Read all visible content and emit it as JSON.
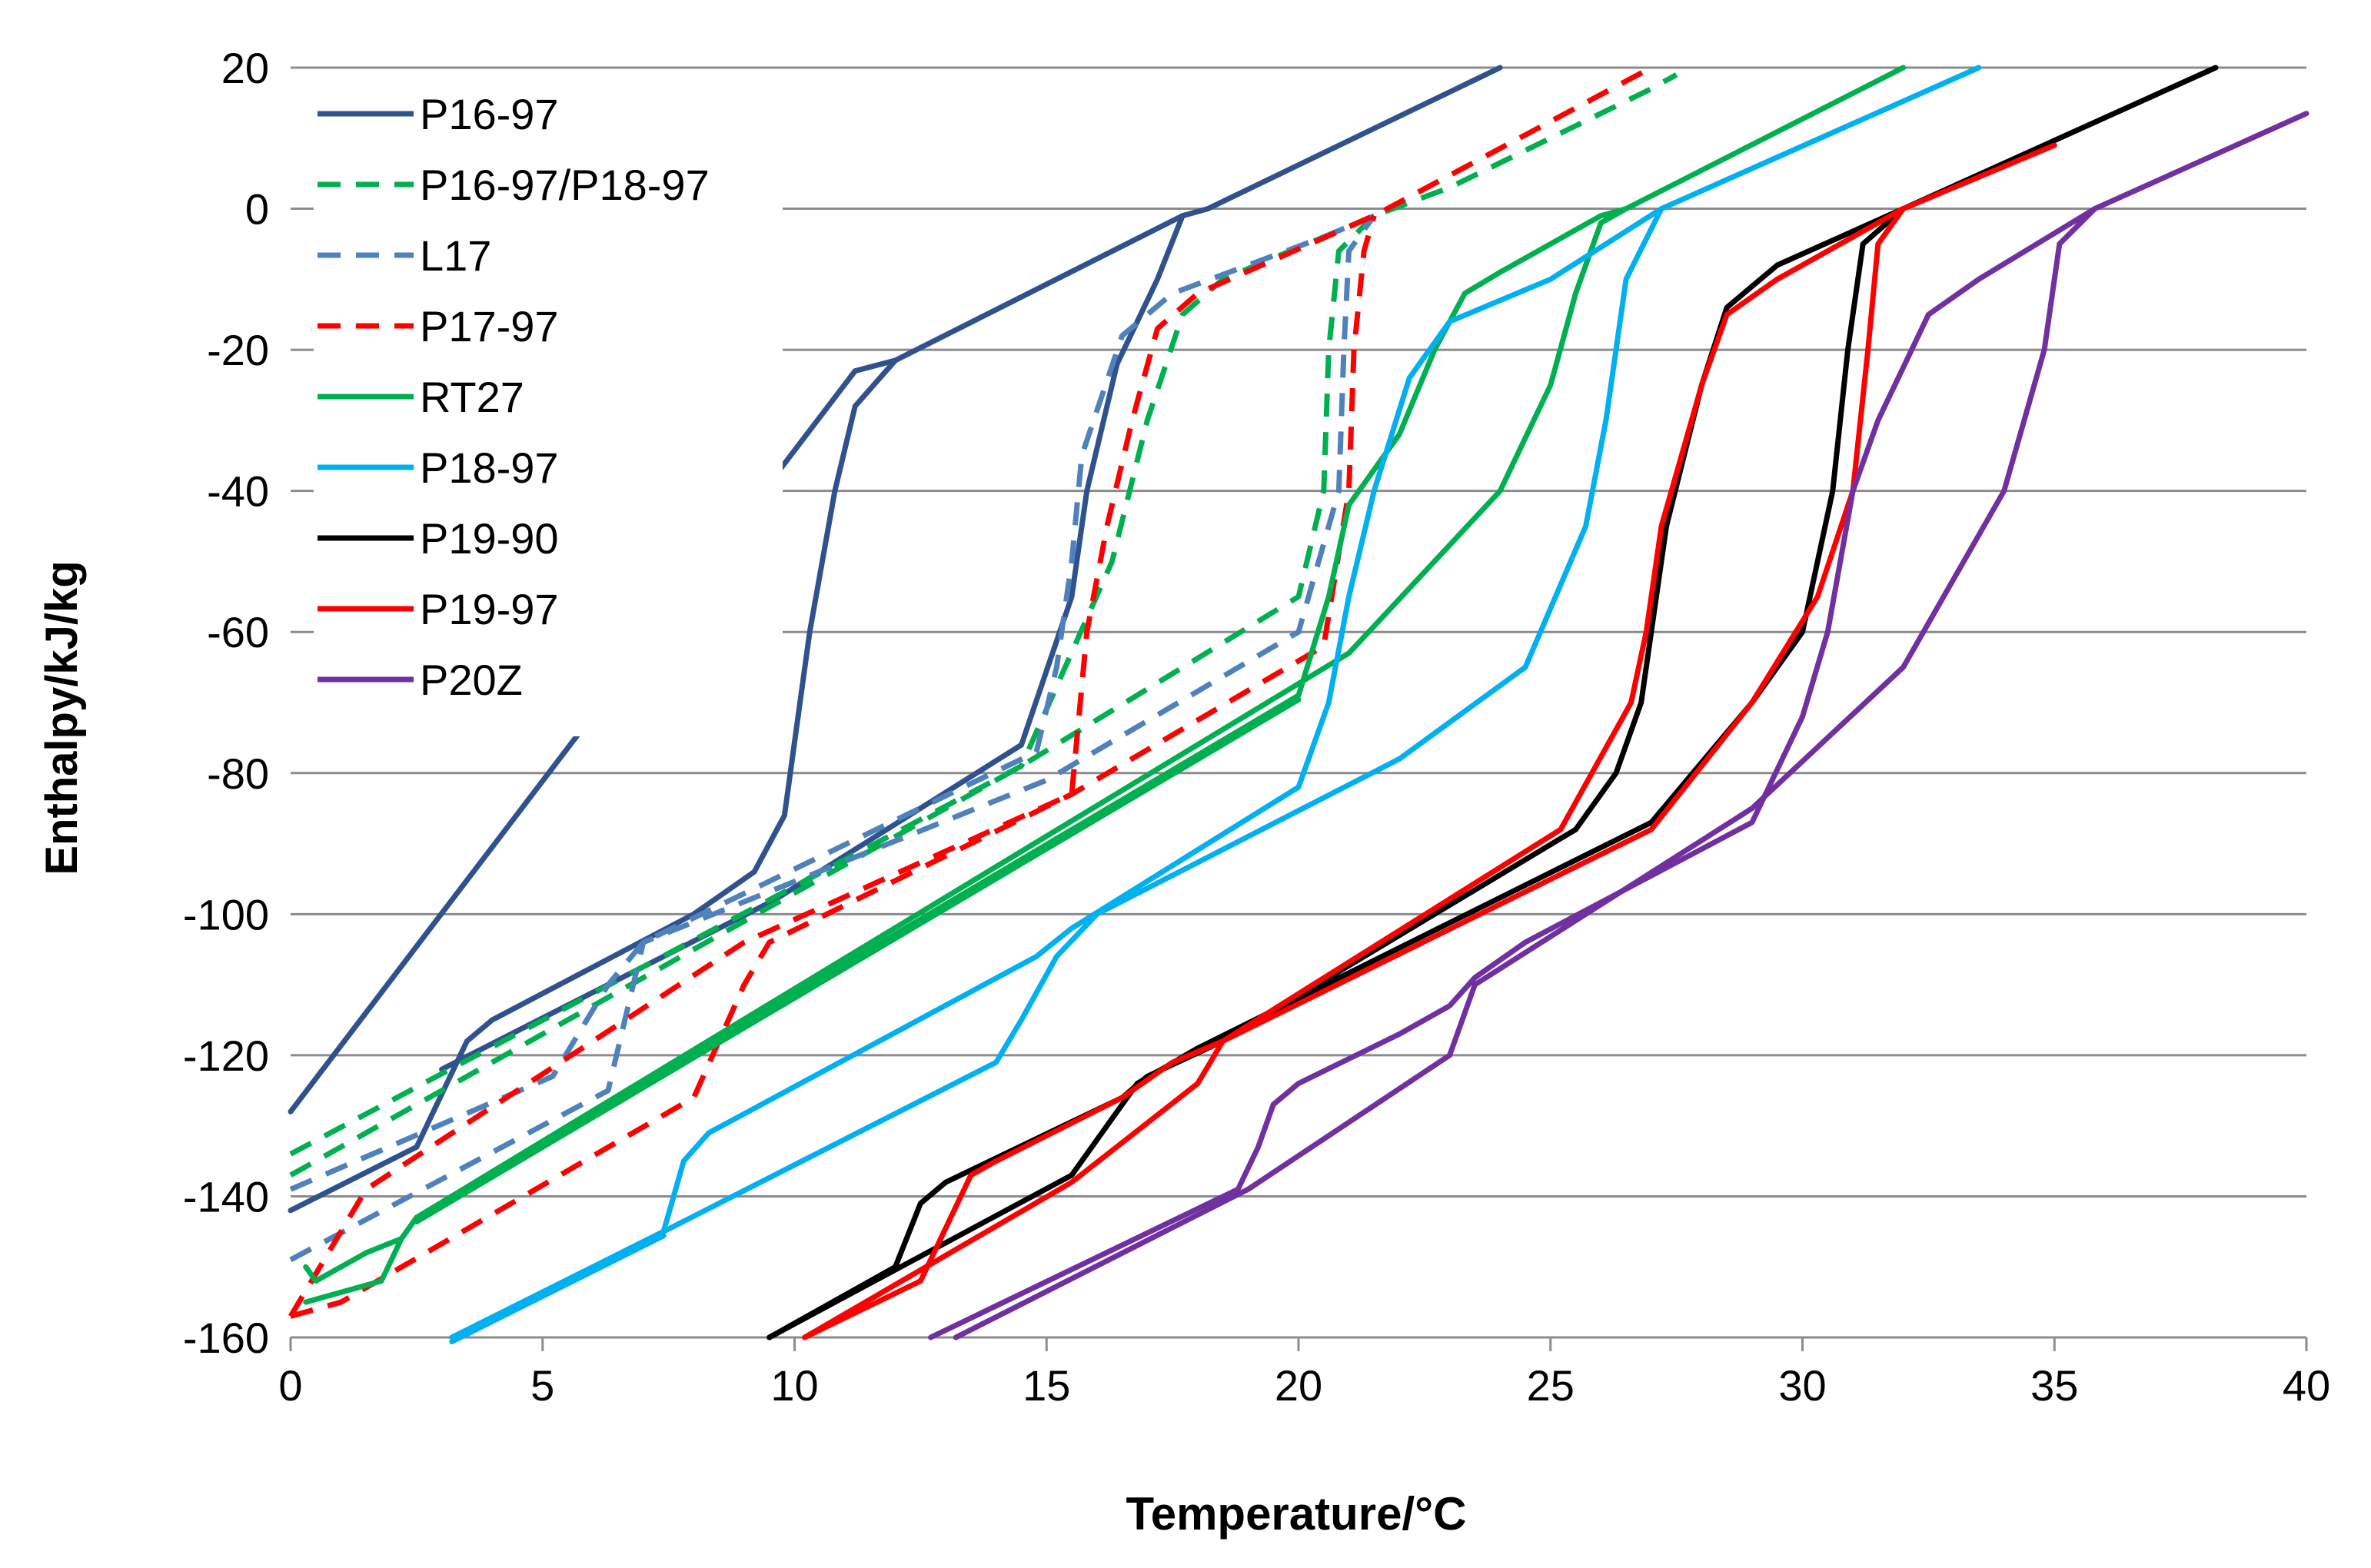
{
  "chart_data": {
    "type": "line",
    "title": "",
    "xlabel": "Temperature/°C",
    "ylabel": "Enthalpy/kJ/kg",
    "xlim": [
      0,
      40
    ],
    "ylim": [
      -160,
      20
    ],
    "xticks": [
      0,
      5,
      10,
      15,
      20,
      25,
      30,
      35,
      40
    ],
    "yticks": [
      -160,
      -140,
      -120,
      -100,
      -80,
      -60,
      -40,
      -20,
      0,
      20
    ],
    "grid": "horizontal",
    "legend_position": "top-left",
    "series": [
      {
        "name": "P16-97",
        "color": "#2f528f",
        "dash": false,
        "curves": [
          [
            [
              0,
              -128
            ],
            [
              11.2,
              -23
            ],
            [
              12,
              -21.5
            ],
            [
              17.7,
              -1
            ],
            [
              18.2,
              0
            ],
            [
              24,
              20
            ]
          ],
          [
            [
              0,
              -142
            ],
            [
              2.5,
              -133
            ],
            [
              3.5,
              -118
            ],
            [
              4,
              -115
            ],
            [
              8,
              -100
            ],
            [
              9.2,
              -94
            ],
            [
              9.8,
              -86
            ],
            [
              10.3,
              -60
            ],
            [
              10.8,
              -40
            ],
            [
              11.2,
              -28
            ],
            [
              12,
              -21.5
            ]
          ],
          [
            [
              3,
              -122
            ],
            [
              9.6,
              -98
            ],
            [
              14.5,
              -76
            ],
            [
              15.5,
              -55
            ],
            [
              15.8,
              -40
            ],
            [
              16.4,
              -22
            ],
            [
              17.2,
              -10
            ],
            [
              17.7,
              -1
            ]
          ]
        ]
      },
      {
        "name": "P16-97/P18-97",
        "color": "#00b050",
        "dash": true,
        "curves": [
          [
            [
              0,
              -134
            ],
            [
              14.5,
              -79
            ],
            [
              16.3,
              -50
            ],
            [
              17,
              -30
            ],
            [
              17.7,
              -15
            ],
            [
              18.5,
              -10
            ],
            [
              20.5,
              -4
            ],
            [
              21.5,
              -1
            ],
            [
              23,
              3
            ],
            [
              27,
              17
            ],
            [
              27.5,
              19
            ]
          ],
          [
            [
              0,
              -137
            ],
            [
              14.5,
              -79
            ],
            [
              20,
              -55
            ],
            [
              20.5,
              -40
            ],
            [
              20.6,
              -20
            ],
            [
              20.8,
              -6
            ],
            [
              21.5,
              -1
            ]
          ]
        ]
      },
      {
        "name": "L17",
        "color": "#4f81bd",
        "dash": true,
        "curves": [
          [
            [
              0,
              -139
            ],
            [
              5.2,
              -123
            ],
            [
              6.3,
              -110
            ],
            [
              7,
              -104
            ],
            [
              14.8,
              -77
            ],
            [
              15.2,
              -65
            ],
            [
              15.5,
              -50
            ],
            [
              15.7,
              -35
            ],
            [
              16.5,
              -18
            ],
            [
              17.5,
              -12
            ],
            [
              20.5,
              -4
            ],
            [
              21.5,
              -1
            ]
          ],
          [
            [
              0,
              -149
            ],
            [
              6.3,
              -125
            ],
            [
              7,
              -104
            ],
            [
              15,
              -81
            ],
            [
              20,
              -60
            ],
            [
              20.8,
              -40
            ],
            [
              20.9,
              -20
            ],
            [
              21,
              -6
            ],
            [
              21.5,
              -1
            ]
          ]
        ]
      },
      {
        "name": "P17-97",
        "color": "#ff0000",
        "dash": true,
        "curves": [
          [
            [
              0,
              -157
            ],
            [
              1.5,
              -139
            ],
            [
              9,
              -104
            ],
            [
              15.5,
              -83
            ],
            [
              15.8,
              -60
            ],
            [
              16.2,
              -45
            ],
            [
              16.7,
              -30
            ],
            [
              17.2,
              -17
            ],
            [
              18,
              -12
            ],
            [
              21.5,
              -1
            ],
            [
              27,
              20
            ]
          ],
          [
            [
              0,
              -157
            ],
            [
              1,
              -155
            ],
            [
              8,
              -126
            ],
            [
              9,
              -110
            ],
            [
              9.5,
              -104
            ],
            [
              15.5,
              -83
            ],
            [
              20.5,
              -62
            ],
            [
              21,
              -40
            ],
            [
              21.1,
              -20
            ],
            [
              21.3,
              -6
            ],
            [
              21.5,
              -1
            ]
          ]
        ]
      },
      {
        "name": "RT27",
        "color": "#00b050",
        "dash": false,
        "curves": [
          [
            [
              0.3,
              -150
            ],
            [
              0.5,
              -152
            ],
            [
              1.5,
              -148
            ],
            [
              2.2,
              -146
            ],
            [
              2.5,
              -143
            ],
            [
              20,
              -69
            ],
            [
              20.6,
              -55
            ],
            [
              21,
              -42
            ],
            [
              22,
              -32
            ],
            [
              22.7,
              -20
            ],
            [
              23.3,
              -12
            ],
            [
              24,
              -9
            ],
            [
              26,
              -1
            ],
            [
              26.5,
              0
            ],
            [
              32,
              20
            ]
          ],
          [
            [
              0.3,
              -155
            ],
            [
              1.8,
              -152
            ],
            [
              2.2,
              -146
            ],
            [
              2.5,
              -143
            ],
            [
              21,
              -63
            ],
            [
              24,
              -40
            ],
            [
              25,
              -25
            ],
            [
              25.5,
              -12
            ],
            [
              26,
              -2
            ],
            [
              26.5,
              0
            ]
          ],
          [
            [
              2.5,
              -143.6
            ],
            [
              20,
              -69.6
            ]
          ]
        ]
      },
      {
        "name": "P18-97",
        "color": "#00b0f0",
        "dash": false,
        "curves": [
          [
            [
              3.2,
              -160
            ],
            [
              7.4,
              -145
            ],
            [
              7.8,
              -135
            ],
            [
              8.3,
              -131
            ],
            [
              14.8,
              -106
            ],
            [
              15.5,
              -102
            ],
            [
              20,
              -82
            ],
            [
              20.6,
              -70
            ],
            [
              21,
              -55
            ],
            [
              21.5,
              -40
            ],
            [
              22.2,
              -24
            ],
            [
              23,
              -16
            ],
            [
              25,
              -10
            ],
            [
              27.2,
              0
            ],
            [
              33.5,
              20
            ]
          ],
          [
            [
              3.2,
              -160
            ],
            [
              7.4,
              -145
            ],
            [
              14,
              -121
            ],
            [
              14.5,
              -115
            ],
            [
              15.2,
              -106
            ],
            [
              16,
              -100
            ],
            [
              22,
              -78
            ],
            [
              24.5,
              -65
            ],
            [
              25.7,
              -45
            ],
            [
              26.1,
              -30
            ],
            [
              26.5,
              -10
            ],
            [
              27.2,
              0
            ]
          ],
          [
            [
              3.2,
              -160.6
            ],
            [
              7.4,
              -145.6
            ]
          ]
        ]
      },
      {
        "name": "P19-90",
        "color": "#000000",
        "dash": false,
        "curves": [
          [
            [
              9.5,
              -160
            ],
            [
              12,
              -150
            ],
            [
              12.5,
              -141
            ],
            [
              13,
              -138
            ],
            [
              16.5,
              -126
            ],
            [
              17,
              -123
            ],
            [
              18.5,
              -118
            ],
            [
              25.5,
              -88
            ],
            [
              26.3,
              -80
            ],
            [
              26.8,
              -70
            ],
            [
              27.3,
              -45
            ],
            [
              28,
              -25
            ],
            [
              28.5,
              -14
            ],
            [
              29.5,
              -8
            ],
            [
              32,
              0
            ],
            [
              38.2,
              20
            ]
          ],
          [
            [
              9.5,
              -160
            ],
            [
              15.5,
              -137
            ],
            [
              16.8,
              -124
            ],
            [
              18,
              -119
            ],
            [
              27,
              -87
            ],
            [
              29,
              -70
            ],
            [
              30,
              -60
            ],
            [
              30.6,
              -40
            ],
            [
              30.9,
              -20
            ],
            [
              31.2,
              -5
            ],
            [
              32,
              0
            ]
          ]
        ]
      },
      {
        "name": "P19-97",
        "color": "#ff0000",
        "dash": false,
        "curves": [
          [
            [
              10.2,
              -160
            ],
            [
              12.5,
              -152
            ],
            [
              13.5,
              -137
            ],
            [
              14,
              -135
            ],
            [
              16.5,
              -126
            ],
            [
              17.5,
              -121
            ],
            [
              18.5,
              -118
            ],
            [
              25.2,
              -88
            ],
            [
              26.6,
              -70
            ],
            [
              26.9,
              -60
            ],
            [
              27.2,
              -45
            ],
            [
              28,
              -25
            ],
            [
              28.5,
              -15
            ],
            [
              29.5,
              -10
            ],
            [
              32,
              0
            ],
            [
              35,
              9
            ]
          ],
          [
            [
              10.2,
              -160
            ],
            [
              15.5,
              -138
            ],
            [
              18,
              -124
            ],
            [
              18.5,
              -118
            ],
            [
              27,
              -88
            ],
            [
              29,
              -70
            ],
            [
              30.3,
              -55
            ],
            [
              31,
              -40
            ],
            [
              31.3,
              -20
            ],
            [
              31.5,
              -5
            ],
            [
              32,
              0
            ]
          ]
        ]
      },
      {
        "name": "P20Z",
        "color": "#7030a0",
        "dash": false,
        "curves": [
          [
            [
              12.7,
              -160
            ],
            [
              18.8,
              -139
            ],
            [
              19.2,
              -133
            ],
            [
              19.5,
              -127
            ],
            [
              20,
              -124
            ],
            [
              22,
              -117
            ],
            [
              23,
              -113
            ],
            [
              23.5,
              -109
            ],
            [
              24.5,
              -104
            ],
            [
              29,
              -87
            ],
            [
              30,
              -72
            ],
            [
              30.5,
              -60
            ],
            [
              31,
              -40
            ],
            [
              31.5,
              -30
            ],
            [
              32.5,
              -15
            ],
            [
              33.5,
              -10
            ],
            [
              35.8,
              0
            ],
            [
              40,
              13.5
            ]
          ],
          [
            [
              13.2,
              -160
            ],
            [
              19,
              -139
            ],
            [
              23,
              -120
            ],
            [
              23.5,
              -110
            ],
            [
              29,
              -85
            ],
            [
              32,
              -65
            ],
            [
              34,
              -40
            ],
            [
              34.8,
              -20
            ],
            [
              35.1,
              -5
            ],
            [
              35.8,
              0
            ]
          ]
        ]
      }
    ]
  }
}
